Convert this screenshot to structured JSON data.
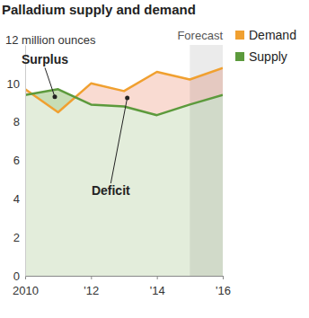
{
  "chart_data": {
    "type": "line",
    "title": "Palladium supply and demand",
    "x": [
      2010,
      2011,
      2012,
      2013,
      2014,
      2015,
      2016
    ],
    "series": [
      {
        "name": "Demand",
        "color": "#f0a030",
        "values": [
          9.7,
          8.5,
          10.0,
          9.6,
          10.6,
          10.2,
          10.8
        ]
      },
      {
        "name": "Supply",
        "color": "#5c9a3c",
        "values": [
          9.4,
          9.7,
          8.9,
          8.8,
          8.35,
          8.9,
          9.4
        ]
      }
    ],
    "xlim": [
      2010,
      2016
    ],
    "xticks": [
      2010,
      {
        "value": 2012,
        "label": "'12"
      },
      {
        "value": 2014,
        "label": "'14"
      },
      {
        "value": 2016,
        "label": "'16"
      }
    ],
    "ylim": [
      0,
      12
    ],
    "yticks": [
      0,
      2,
      4,
      6,
      8,
      10,
      {
        "value": 12,
        "label": "12 million ounces"
      }
    ],
    "grid": false,
    "legend": "right",
    "forecast": {
      "label": "Forecast",
      "x": [
        2015,
        2016
      ]
    },
    "annotations": [
      {
        "text": "Surplus",
        "x": 2010.6,
        "y": 11.0,
        "point": [
          2010.9,
          9.3
        ]
      },
      {
        "text": "Deficit",
        "x": 2012.6,
        "y": 4.2,
        "point": [
          2013.1,
          9.25
        ]
      }
    ]
  }
}
